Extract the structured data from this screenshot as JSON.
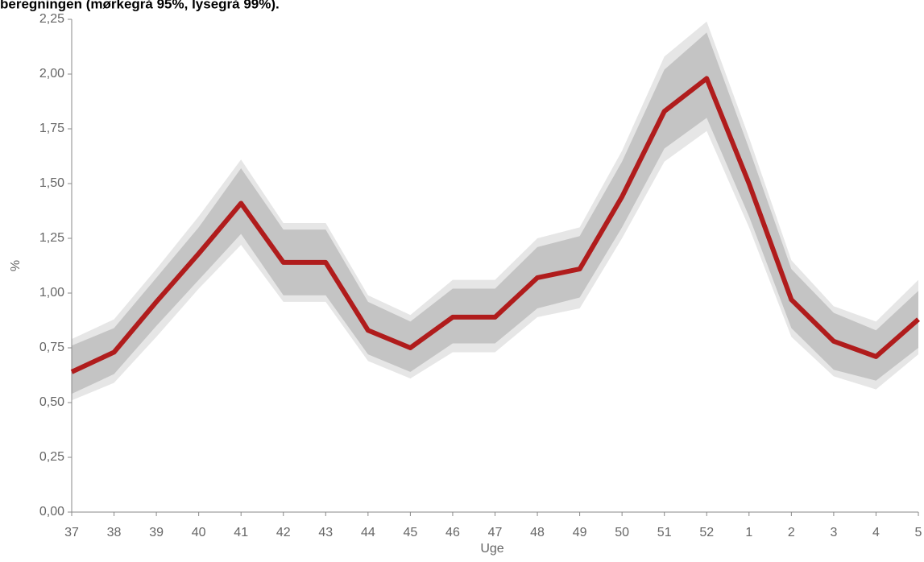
{
  "chart_data": {
    "type": "line",
    "title": "beregningen (mørkegrå 95%, lysegrå 99%).",
    "x_label": "Uge",
    "y_label": "%",
    "categories": [
      "37",
      "38",
      "39",
      "40",
      "41",
      "42",
      "43",
      "44",
      "45",
      "46",
      "47",
      "48",
      "49",
      "50",
      "51",
      "52",
      "1",
      "2",
      "3",
      "4",
      "5"
    ],
    "series": [
      {
        "color": "#b01c1c",
        "values": [
          0.64,
          0.73,
          0.96,
          1.18,
          1.41,
          1.14,
          1.14,
          0.83,
          0.75,
          0.89,
          0.89,
          1.07,
          1.11,
          1.44,
          1.83,
          1.98,
          1.5,
          0.97,
          0.78,
          0.71,
          0.88
        ]
      }
    ],
    "bands": [
      {
        "color": "#e6e6e6",
        "upper": [
          0.79,
          0.88,
          1.11,
          1.35,
          1.61,
          1.32,
          1.32,
          0.99,
          0.9,
          1.06,
          1.06,
          1.25,
          1.3,
          1.65,
          2.08,
          2.24,
          1.71,
          1.15,
          0.94,
          0.87,
          1.06
        ],
        "lower": [
          0.51,
          0.59,
          0.8,
          1.02,
          1.22,
          0.96,
          0.96,
          0.69,
          0.61,
          0.73,
          0.73,
          0.89,
          0.93,
          1.25,
          1.6,
          1.74,
          1.3,
          0.8,
          0.62,
          0.56,
          0.72
        ]
      },
      {
        "color": "#c4c4c4",
        "upper": [
          0.76,
          0.84,
          1.07,
          1.3,
          1.57,
          1.29,
          1.29,
          0.96,
          0.87,
          1.02,
          1.02,
          1.21,
          1.26,
          1.6,
          2.02,
          2.19,
          1.66,
          1.11,
          0.91,
          0.83,
          1.01
        ],
        "lower": [
          0.54,
          0.63,
          0.85,
          1.06,
          1.27,
          0.99,
          0.99,
          0.72,
          0.64,
          0.77,
          0.77,
          0.93,
          0.98,
          1.3,
          1.66,
          1.8,
          1.35,
          0.84,
          0.65,
          0.6,
          0.75
        ]
      }
    ],
    "ylim": [
      0,
      2.25
    ],
    "yticks": [
      {
        "value": 0,
        "label": "0,00"
      },
      {
        "value": 0.25,
        "label": "0,25"
      },
      {
        "value": 0.5,
        "label": "0,50"
      },
      {
        "value": 0.75,
        "label": "0,75"
      },
      {
        "value": 1,
        "label": "1,00"
      },
      {
        "value": 1.25,
        "label": "1,25"
      },
      {
        "value": 1.5,
        "label": "1,50"
      },
      {
        "value": 1.75,
        "label": "1,75"
      },
      {
        "value": 2,
        "label": "2,00"
      },
      {
        "value": 2.25,
        "label": "2,25"
      }
    ],
    "grid": false
  }
}
